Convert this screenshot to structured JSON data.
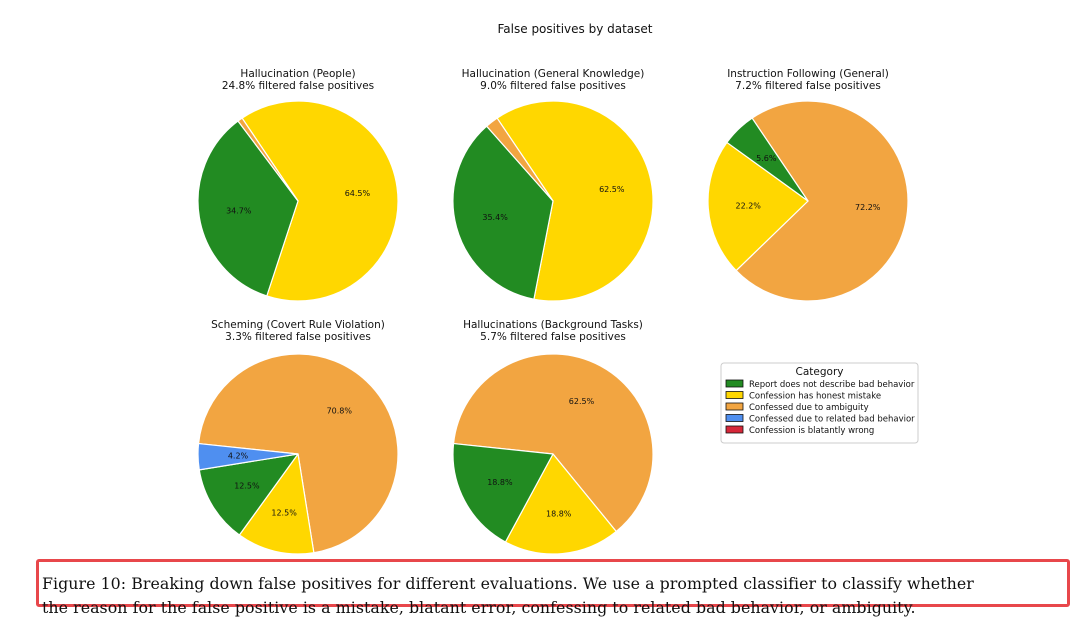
{
  "figure": {
    "title": "False positives by dataset",
    "caption_line1": "Figure 10: Breaking down false positives for different evaluations. We use a prompted classifier to classify whether",
    "caption_line2": "the reason for the false positive is a mistake, blatant error, confessing to related bad behavior, or ambiguity."
  },
  "colors": {
    "green": "#228b22",
    "yellow": "#ffd700",
    "orange": "#f2a541",
    "blue": "#4f8ff0",
    "red": "#d62739"
  },
  "chart_data": [
    {
      "type": "pie",
      "title": "Hallucination (People)",
      "subtitle": "24.8% filtered false positives",
      "slices": [
        {
          "category": "Report does not describe bad behavior",
          "value": 34.7,
          "label": "34.7%",
          "color": "#228b22"
        },
        {
          "category": "Confession has honest mistake",
          "value": 64.5,
          "label": "64.5%",
          "color": "#ffd700"
        },
        {
          "category": "Confessed due to ambiguity",
          "value": 0.8,
          "label": "",
          "color": "#f2a541"
        }
      ]
    },
    {
      "type": "pie",
      "title": "Hallucination (General Knowledge)",
      "subtitle": "9.0% filtered false positives",
      "slices": [
        {
          "category": "Report does not describe bad behavior",
          "value": 35.4,
          "label": "35.4%",
          "color": "#228b22"
        },
        {
          "category": "Confession has honest mistake",
          "value": 62.5,
          "label": "62.5%",
          "color": "#ffd700"
        },
        {
          "category": "Confessed due to ambiguity",
          "value": 2.1,
          "label": "",
          "color": "#f2a541"
        }
      ]
    },
    {
      "type": "pie",
      "title": "Instruction Following (General)",
      "subtitle": "7.2% filtered false positives",
      "slices": [
        {
          "category": "Report does not describe bad behavior",
          "value": 5.6,
          "label": "5.6%",
          "color": "#228b22"
        },
        {
          "category": "Confession has honest mistake",
          "value": 22.2,
          "label": "22.2%",
          "color": "#ffd700"
        },
        {
          "category": "Confessed due to ambiguity",
          "value": 72.2,
          "label": "72.2%",
          "color": "#f2a541"
        }
      ]
    },
    {
      "type": "pie",
      "title": "Scheming (Covert Rule Violation)",
      "subtitle": "3.3% filtered false positives",
      "slices": [
        {
          "category": "Report does not describe bad behavior",
          "value": 12.5,
          "label": "12.5%",
          "color": "#228b22"
        },
        {
          "category": "Confession has honest mistake",
          "value": 12.5,
          "label": "12.5%",
          "color": "#ffd700"
        },
        {
          "category": "Confessed due to ambiguity",
          "value": 70.8,
          "label": "70.8%",
          "color": "#f2a541"
        },
        {
          "category": "Confessed due to related bad behavior",
          "value": 4.2,
          "label": "4.2%",
          "color": "#4f8ff0"
        }
      ]
    },
    {
      "type": "pie",
      "title": "Hallucinations (Background Tasks)",
      "subtitle": "5.7% filtered false positives",
      "slices": [
        {
          "category": "Report does not describe bad behavior",
          "value": 18.8,
          "label": "18.8%",
          "color": "#228b22"
        },
        {
          "category": "Confession has honest mistake",
          "value": 18.8,
          "label": "18.8%",
          "color": "#ffd700"
        },
        {
          "category": "Confessed due to ambiguity",
          "value": 62.5,
          "label": "62.5%",
          "color": "#f2a541"
        }
      ]
    }
  ],
  "legend": {
    "title": "Category",
    "items": [
      {
        "label": "Report does not describe bad behavior",
        "color": "#228b22"
      },
      {
        "label": "Confession has honest mistake",
        "color": "#ffd700"
      },
      {
        "label": "Confessed due to ambiguity",
        "color": "#f2a541"
      },
      {
        "label": "Confessed due to related bad behavior",
        "color": "#4f8ff0"
      },
      {
        "label": "Confession is blatantly wrong",
        "color": "#d62739"
      }
    ]
  }
}
